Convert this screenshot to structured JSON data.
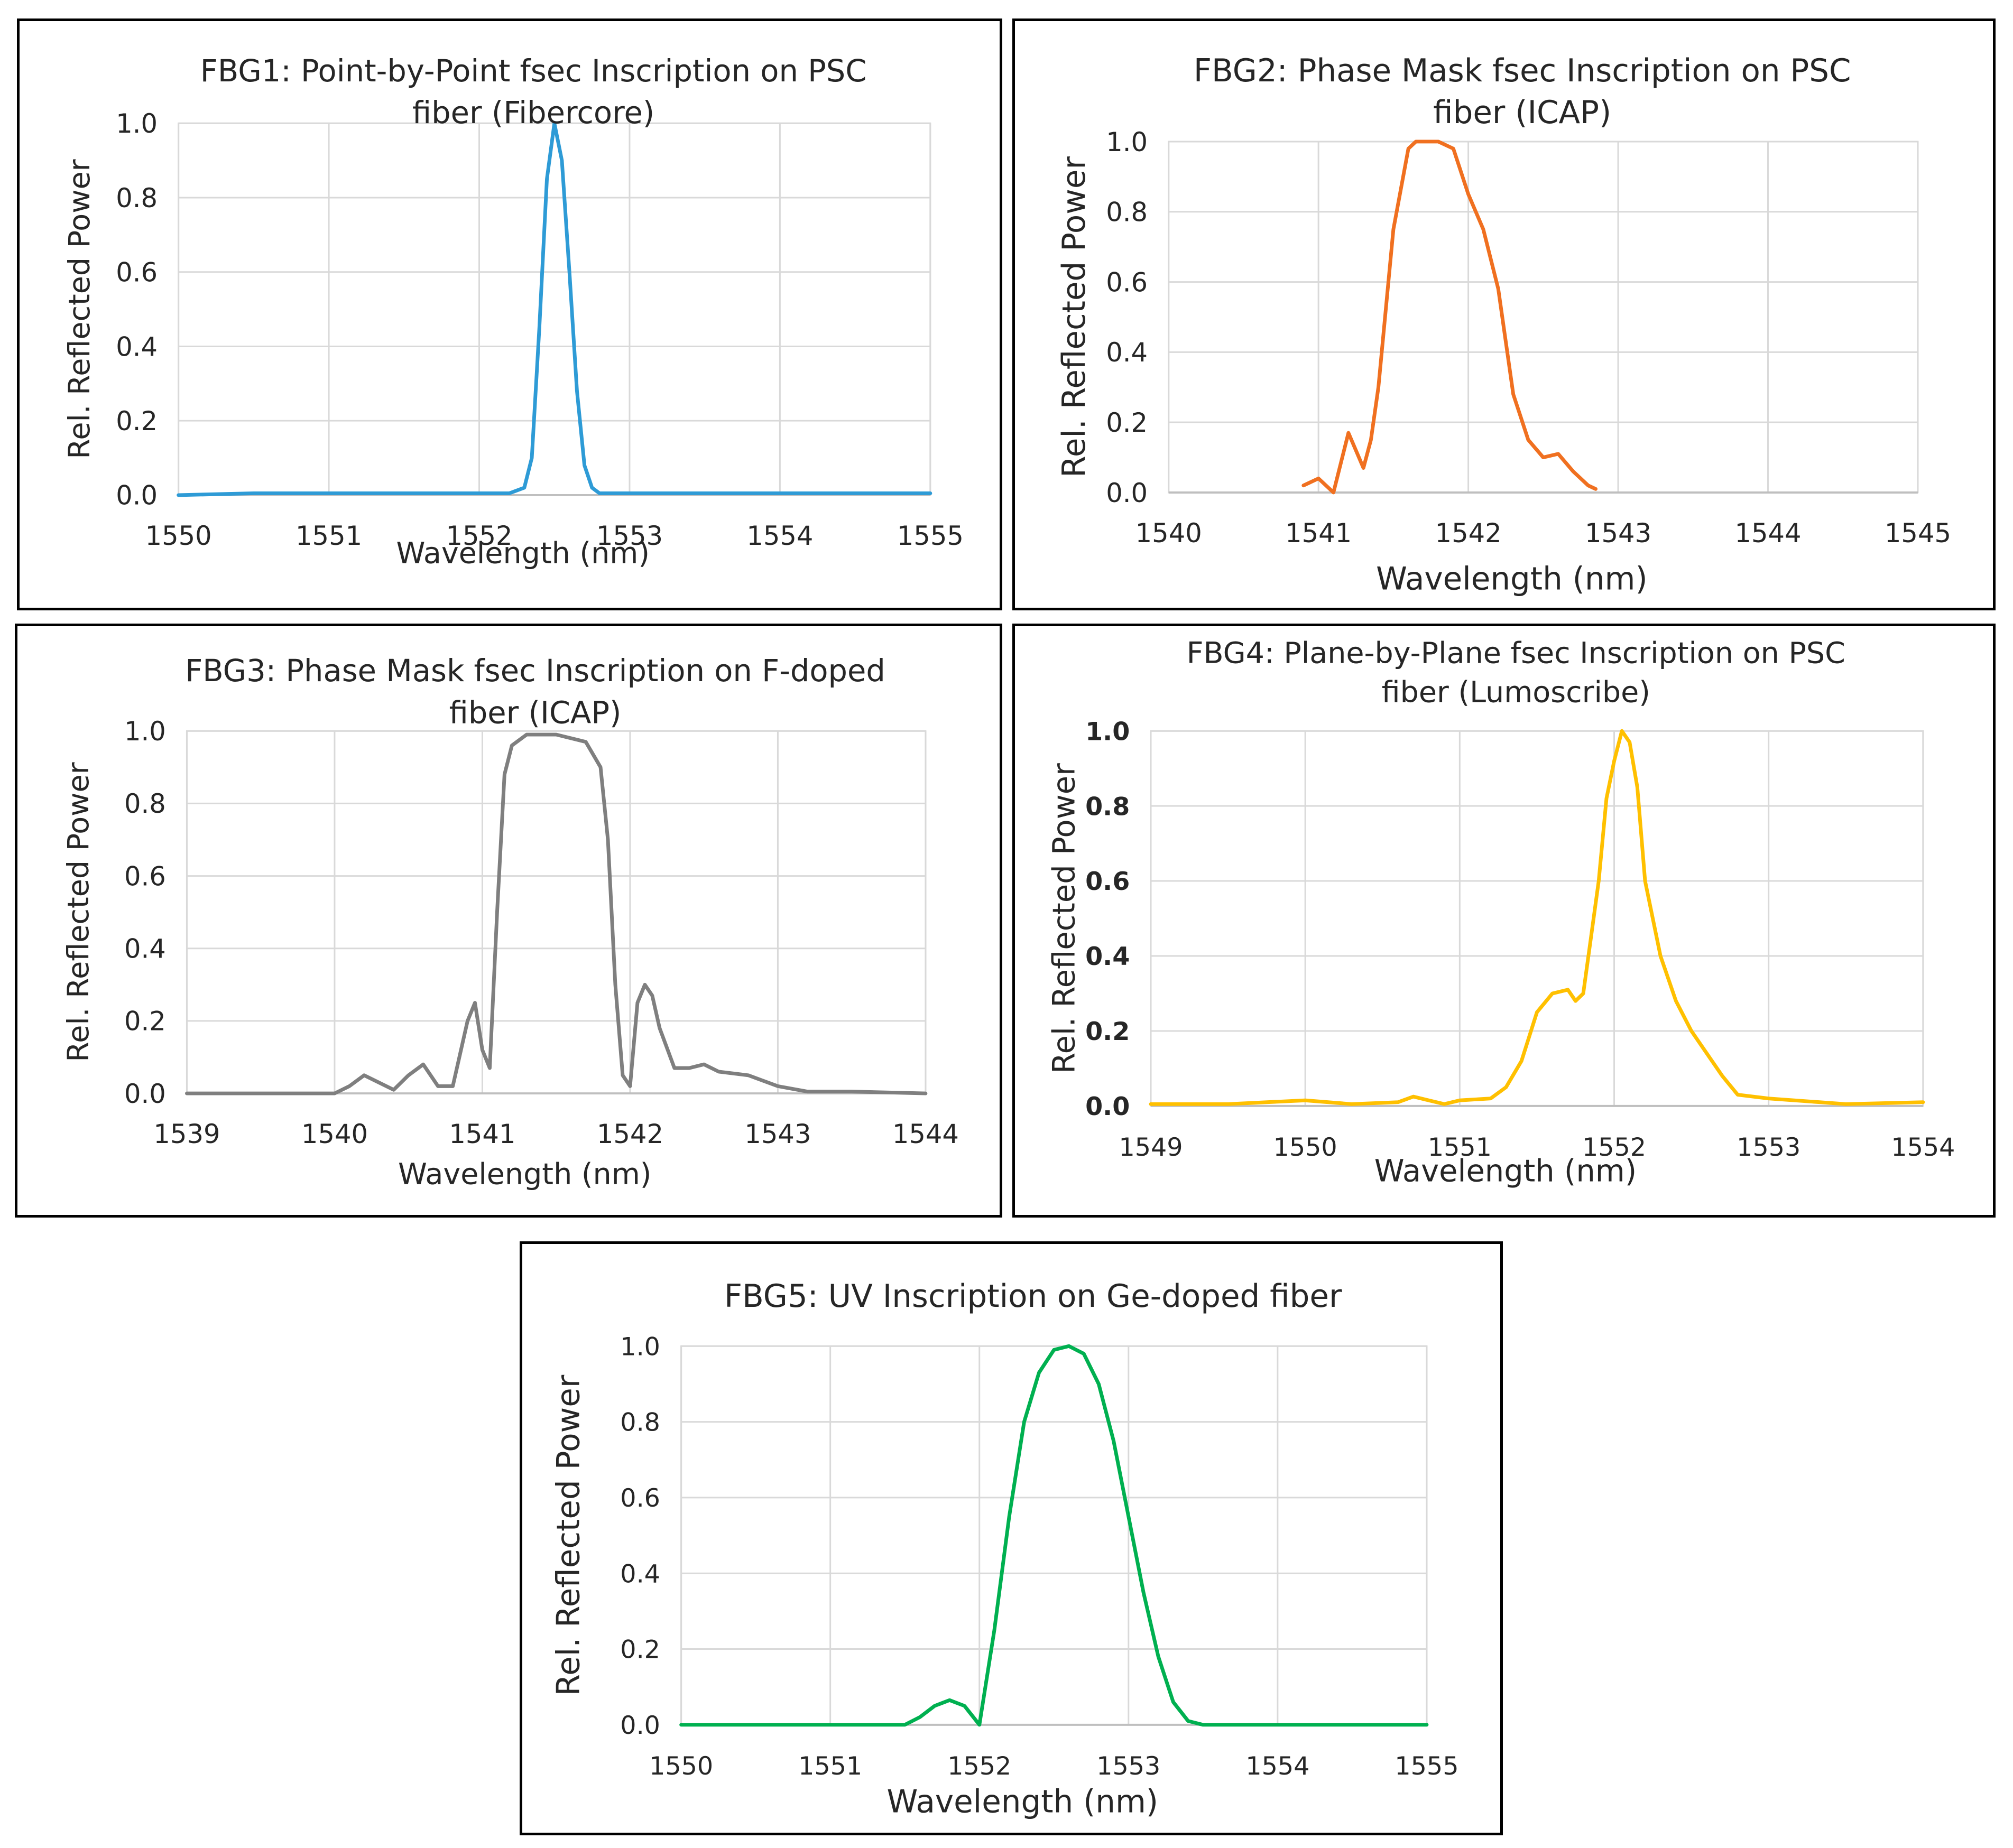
{
  "chart_data": [
    {
      "id": "fbg1",
      "type": "line",
      "title_lines": [
        "FBG1:  Point-by-Point fsec Inscription on PSC",
        "fiber (Fibercore)"
      ],
      "xlabel": "Wavelength (nm)",
      "ylabel": "Rel. Reflected Power",
      "xlim": [
        1550,
        1555
      ],
      "ylim": [
        0,
        1
      ],
      "xticks": [
        1550,
        1551,
        1552,
        1553,
        1554,
        1555
      ],
      "yticks": [
        0.0,
        0.2,
        0.4,
        0.6,
        0.8,
        1.0
      ],
      "ytick_labels": [
        "0.0",
        "0.2",
        "0.4",
        "0.6",
        "0.8",
        "1.0"
      ],
      "bold_yticks": false,
      "color": "#2E9BD6",
      "series": [
        {
          "name": "FBG1",
          "x": [
            1550.0,
            1550.5,
            1551.0,
            1551.5,
            1552.0,
            1552.2,
            1552.3,
            1552.35,
            1552.4,
            1552.45,
            1552.5,
            1552.55,
            1552.6,
            1552.65,
            1552.7,
            1552.75,
            1552.8,
            1553.0,
            1553.5,
            1554.0,
            1554.5,
            1555.0
          ],
          "y": [
            0.0,
            0.005,
            0.005,
            0.005,
            0.005,
            0.005,
            0.02,
            0.1,
            0.45,
            0.85,
            1.0,
            0.9,
            0.6,
            0.28,
            0.08,
            0.02,
            0.005,
            0.005,
            0.005,
            0.005,
            0.005,
            0.005
          ]
        }
      ]
    },
    {
      "id": "fbg2",
      "type": "line",
      "title_lines": [
        "FBG2: Phase Mask fsec Inscription on PSC",
        "fiber (ICAP)"
      ],
      "xlabel": "Wavelength (nm)",
      "ylabel": "Rel. Reflected Power",
      "xlim": [
        1540,
        1545
      ],
      "ylim": [
        0,
        1
      ],
      "xticks": [
        1540,
        1541,
        1542,
        1543,
        1544,
        1545
      ],
      "yticks": [
        0.0,
        0.2,
        0.4,
        0.6,
        0.8,
        1.0
      ],
      "ytick_labels": [
        "0.0",
        "0.2",
        "0.4",
        "0.6",
        "0.8",
        "1.0"
      ],
      "bold_yticks": false,
      "color": "#F07020",
      "series": [
        {
          "name": "FBG2",
          "x": [
            1540.9,
            1541.0,
            1541.1,
            1541.2,
            1541.3,
            1541.35,
            1541.4,
            1541.5,
            1541.6,
            1541.65,
            1541.7,
            1541.8,
            1541.9,
            1542.0,
            1542.1,
            1542.2,
            1542.3,
            1542.4,
            1542.5,
            1542.6,
            1542.7,
            1542.8,
            1542.85
          ],
          "y": [
            0.02,
            0.04,
            0.0,
            0.17,
            0.07,
            0.15,
            0.3,
            0.75,
            0.98,
            1.0,
            1.0,
            1.0,
            0.98,
            0.85,
            0.75,
            0.58,
            0.28,
            0.15,
            0.1,
            0.11,
            0.06,
            0.02,
            0.01
          ]
        }
      ]
    },
    {
      "id": "fbg3",
      "type": "line",
      "title_lines": [
        "FBG3: Phase Mask fsec Inscription on F-doped",
        "fiber (ICAP)"
      ],
      "xlabel": "Wavelength (nm)",
      "ylabel": "Rel. Reflected Power",
      "xlim": [
        1539,
        1544
      ],
      "ylim": [
        0,
        1
      ],
      "xticks": [
        1539,
        1540,
        1541,
        1542,
        1543,
        1544
      ],
      "yticks": [
        0.0,
        0.2,
        0.4,
        0.6,
        0.8,
        1.0
      ],
      "ytick_labels": [
        "0.0",
        "0.2",
        "0.4",
        "0.6",
        "0.8",
        "1.0"
      ],
      "bold_yticks": false,
      "color": "#7F7F7F",
      "series": [
        {
          "name": "FBG3",
          "x": [
            1539.0,
            1540.0,
            1540.1,
            1540.2,
            1540.3,
            1540.4,
            1540.5,
            1540.6,
            1540.7,
            1540.8,
            1540.9,
            1540.95,
            1541.0,
            1541.05,
            1541.1,
            1541.15,
            1541.2,
            1541.3,
            1541.5,
            1541.7,
            1541.8,
            1541.85,
            1541.9,
            1541.95,
            1542.0,
            1542.05,
            1542.1,
            1542.15,
            1542.2,
            1542.3,
            1542.4,
            1542.5,
            1542.6,
            1542.8,
            1543.0,
            1543.2,
            1543.5,
            1544.0
          ],
          "y": [
            0.0,
            0.0,
            0.02,
            0.05,
            0.03,
            0.01,
            0.05,
            0.08,
            0.02,
            0.02,
            0.2,
            0.25,
            0.12,
            0.07,
            0.5,
            0.88,
            0.96,
            0.99,
            0.99,
            0.97,
            0.9,
            0.7,
            0.3,
            0.05,
            0.02,
            0.25,
            0.3,
            0.27,
            0.18,
            0.07,
            0.07,
            0.08,
            0.06,
            0.05,
            0.02,
            0.005,
            0.005,
            0.0
          ]
        }
      ]
    },
    {
      "id": "fbg4",
      "type": "line",
      "title_lines": [
        "FBG4:  Plane-by-Plane fsec Inscription on PSC",
        "fiber (Lumoscribe)"
      ],
      "xlabel": "Wavelength (nm)",
      "ylabel": "Rel. Reflected Power",
      "xlim": [
        1549,
        1554
      ],
      "ylim": [
        0,
        1
      ],
      "xticks": [
        1549,
        1550,
        1551,
        1552,
        1553,
        1554
      ],
      "yticks": [
        0.0,
        0.2,
        0.4,
        0.6,
        0.8,
        1.0
      ],
      "ytick_labels": [
        "0.0",
        "0.2",
        "0.4",
        "0.6",
        "0.8",
        "1.0"
      ],
      "bold_yticks": true,
      "color": "#FFC000",
      "series": [
        {
          "name": "FBG4",
          "x": [
            1549.0,
            1549.5,
            1550.0,
            1550.3,
            1550.6,
            1550.7,
            1550.8,
            1550.9,
            1551.0,
            1551.2,
            1551.3,
            1551.4,
            1551.5,
            1551.6,
            1551.7,
            1551.75,
            1551.8,
            1551.85,
            1551.9,
            1551.95,
            1552.0,
            1552.05,
            1552.1,
            1552.15,
            1552.2,
            1552.3,
            1552.4,
            1552.5,
            1552.6,
            1552.7,
            1552.8,
            1553.0,
            1553.5,
            1554.0
          ],
          "y": [
            0.005,
            0.005,
            0.015,
            0.005,
            0.01,
            0.025,
            0.015,
            0.005,
            0.015,
            0.02,
            0.05,
            0.12,
            0.25,
            0.3,
            0.31,
            0.28,
            0.3,
            0.45,
            0.6,
            0.82,
            0.92,
            1.0,
            0.97,
            0.85,
            0.6,
            0.4,
            0.28,
            0.2,
            0.14,
            0.08,
            0.03,
            0.02,
            0.005,
            0.01
          ]
        }
      ]
    },
    {
      "id": "fbg5",
      "type": "line",
      "title_lines": [
        "FBG5: UV Inscription  on Ge-doped fiber"
      ],
      "xlabel": "Wavelength (nm)",
      "ylabel": "Rel. Reflected Power",
      "xlim": [
        1550,
        1555
      ],
      "ylim": [
        0,
        1
      ],
      "xticks": [
        1550,
        1551,
        1552,
        1553,
        1554,
        1555
      ],
      "yticks": [
        0.0,
        0.2,
        0.4,
        0.6,
        0.8,
        1.0
      ],
      "ytick_labels": [
        "0.0",
        "0.2",
        "0.4",
        "0.6",
        "0.8",
        "1.0"
      ],
      "bold_yticks": false,
      "color": "#00B050",
      "series": [
        {
          "name": "FBG5",
          "x": [
            1550.0,
            1551.0,
            1551.5,
            1551.6,
            1551.7,
            1551.8,
            1551.9,
            1552.0,
            1552.1,
            1552.2,
            1552.3,
            1552.4,
            1552.5,
            1552.6,
            1552.7,
            1552.8,
            1552.9,
            1553.0,
            1553.1,
            1553.2,
            1553.3,
            1553.4,
            1553.5,
            1554.0,
            1555.0
          ],
          "y": [
            0.0,
            0.0,
            0.0,
            0.02,
            0.05,
            0.065,
            0.05,
            0.0,
            0.25,
            0.55,
            0.8,
            0.93,
            0.99,
            1.0,
            0.98,
            0.9,
            0.75,
            0.55,
            0.35,
            0.18,
            0.06,
            0.01,
            0.0,
            0.0,
            0.0
          ]
        }
      ]
    }
  ]
}
